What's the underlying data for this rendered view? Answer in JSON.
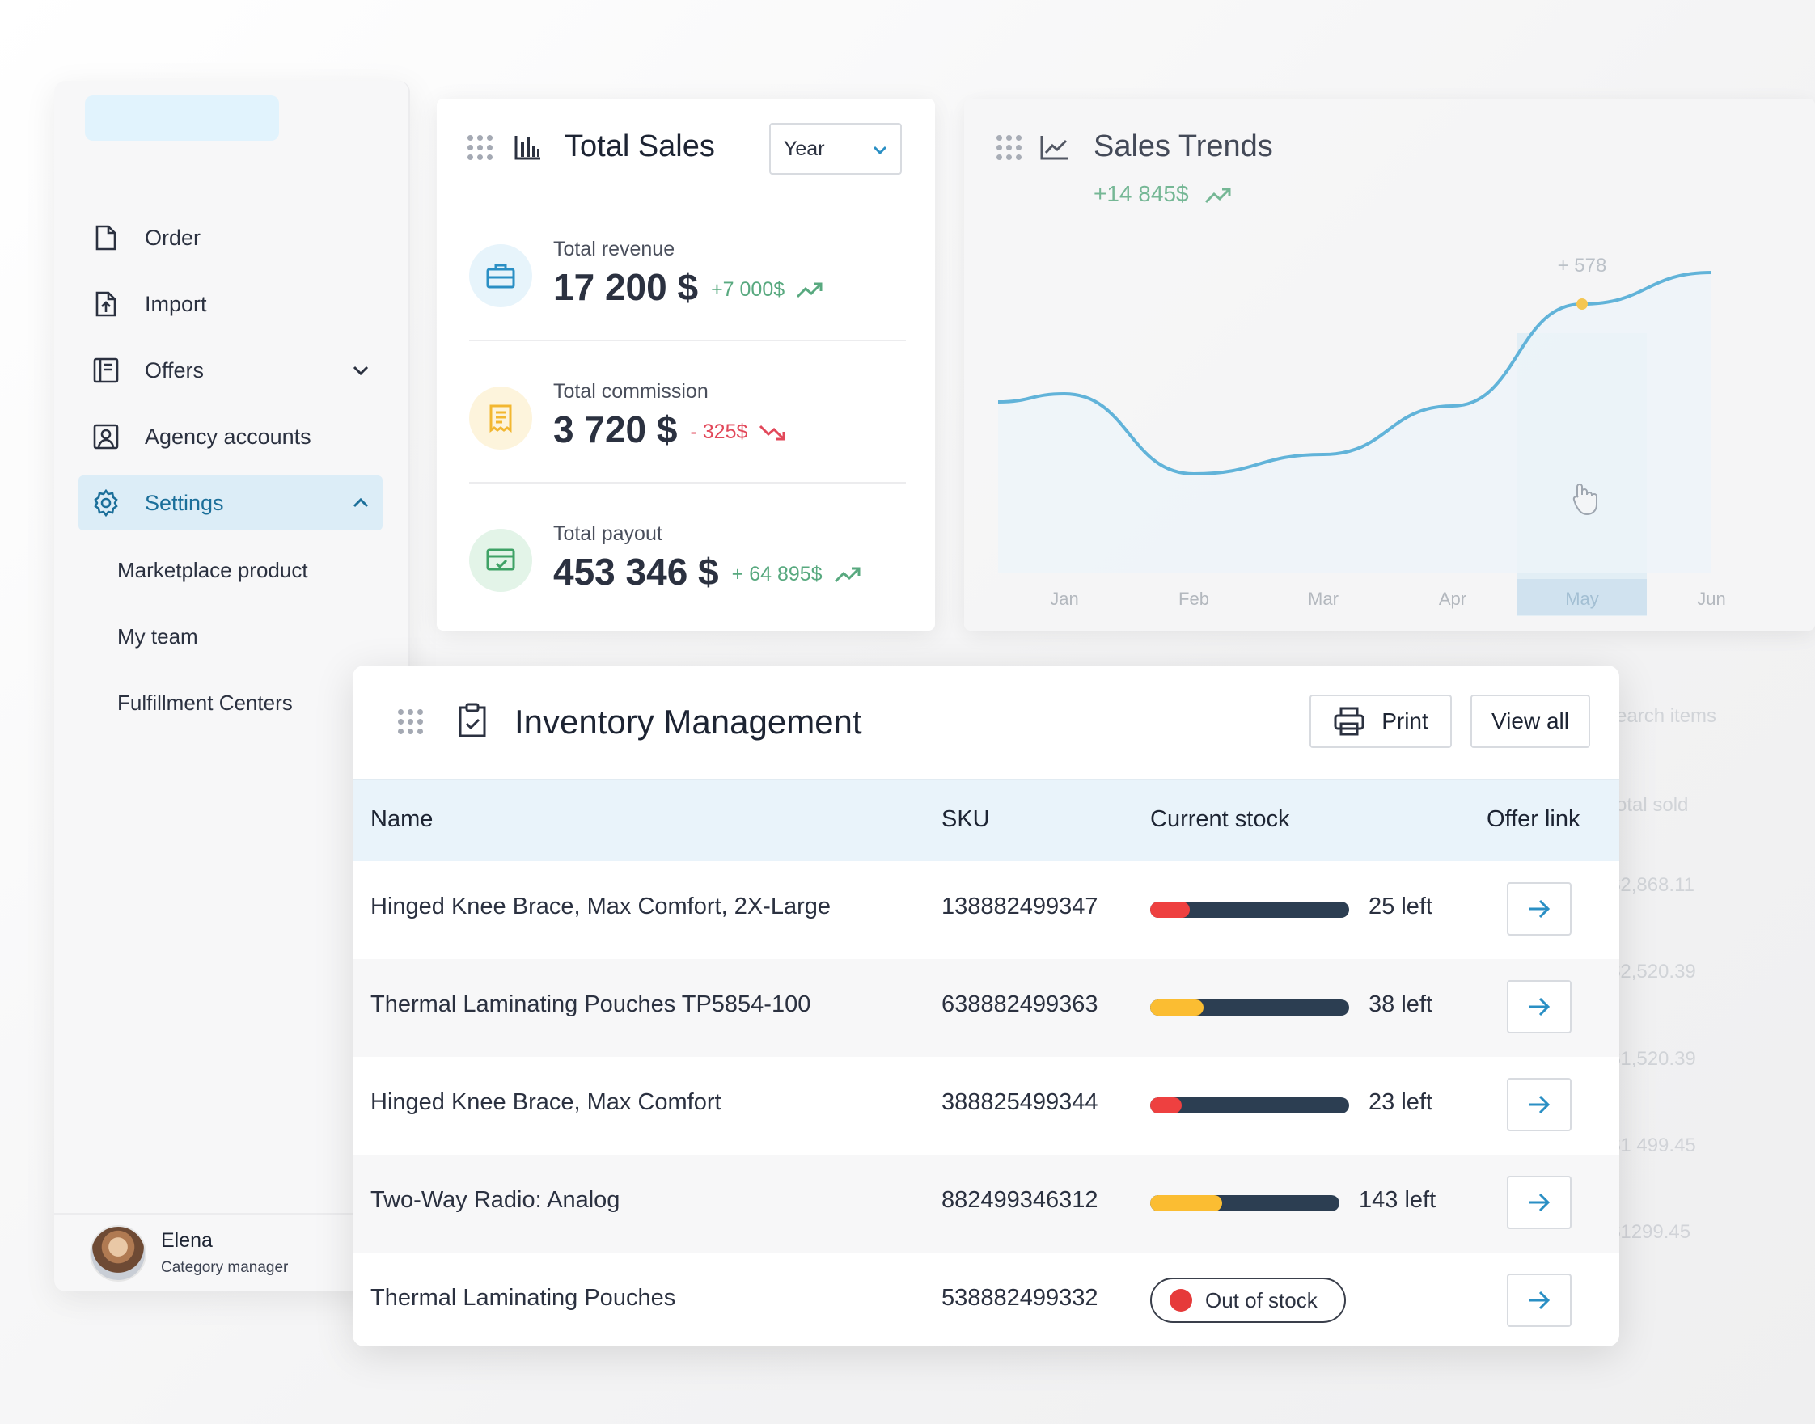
{
  "sidebar": {
    "nav": [
      {
        "label": "Order",
        "icon": "file-icon"
      },
      {
        "label": "Import",
        "icon": "file-upload-icon"
      },
      {
        "label": "Offers",
        "icon": "catalog-icon"
      },
      {
        "label": "Agency accounts",
        "icon": "contact-card-icon"
      },
      {
        "label": "Settings",
        "icon": "gear-icon"
      }
    ],
    "sub_items": [
      "Marketplace product",
      "My team",
      "Fulfillment Centers"
    ],
    "user": {
      "name": "Elena",
      "role": "Category manager"
    }
  },
  "total_sales": {
    "title": "Total Sales",
    "period_select": "Year",
    "metrics": [
      {
        "label": "Total revenue",
        "value": "17 200 $",
        "delta": "+7 000$",
        "direction": "up",
        "color": "#58a97f"
      },
      {
        "label": "Total commission",
        "value": "3 720 $",
        "delta": "- 325$",
        "direction": "down",
        "color": "#e2485a"
      },
      {
        "label": "Total payout",
        "value": "453 346 $",
        "delta": "+ 64 895$",
        "direction": "up",
        "color": "#58a97f"
      }
    ]
  },
  "sales_trends": {
    "title": "Sales Trends",
    "subtitle": "+14 845$",
    "tooltip": "+ 578",
    "highlighted_month": "May"
  },
  "chart_data": {
    "type": "line",
    "title": "Sales Trends",
    "categories": [
      "Jan",
      "Feb",
      "Mar",
      "Apr",
      "May",
      "Jun"
    ],
    "values": [
      45,
      12,
      20,
      40,
      82,
      95
    ],
    "highlight": {
      "category": "May",
      "label": "+ 578"
    },
    "grid": false,
    "color": "#5ab0d8"
  },
  "inventory": {
    "title": "Inventory Management",
    "print_label": "Print",
    "view_all_label": "View all",
    "columns": [
      "Name",
      "SKU",
      "Current stock",
      "Offer link"
    ],
    "rows": [
      {
        "name": "Hinged Knee Brace, Max Comfort, 2X-Large",
        "sku": "138882499347",
        "stock": "25 left",
        "level": 0.2,
        "color": "#ee4040"
      },
      {
        "name": "Thermal Laminating Pouches TP5854-100",
        "sku": "638882499363",
        "stock": "38 left",
        "level": 0.27,
        "color": "#fbbd32"
      },
      {
        "name": "Hinged Knee Brace, Max Comfort",
        "sku": "388825499344",
        "stock": "23 left",
        "level": 0.16,
        "color": "#ee4040"
      },
      {
        "name": "Two-Way Radio: Analog",
        "sku": "882499346312",
        "stock": "143 left",
        "level": 0.38,
        "color": "#fbbd32"
      },
      {
        "name": "Thermal Laminating Pouches",
        "sku": "538882499332",
        "stock": "Out of stock",
        "level": 0,
        "color": "#e63a3a"
      }
    ]
  },
  "background_panel": {
    "search_placeholder": "earch items",
    "column": "otal sold",
    "values": [
      "$2,868.11",
      "$2,520.39",
      "$1,520.39",
      "$1 499.45",
      "$1299.45"
    ]
  }
}
